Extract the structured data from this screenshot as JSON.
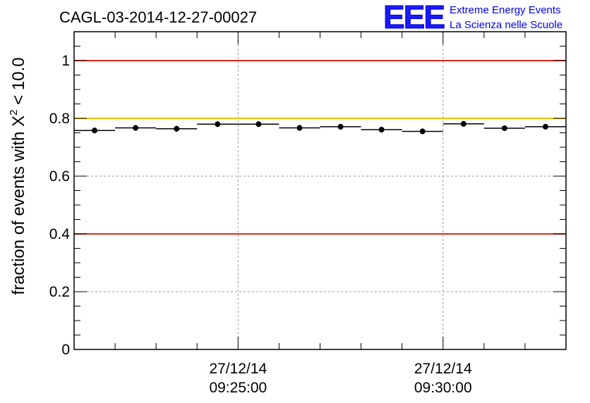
{
  "header": {
    "title": "CAGL-03-2014-12-27-00027",
    "logo": "EEE",
    "brand_line1": "Extreme Energy Events",
    "brand_line2": "La Scienza nelle Scuole"
  },
  "chart_data": {
    "type": "scatter",
    "title": "CAGL-03-2014-12-27-00027",
    "ylabel_parts": {
      "prefix": "fraction of events with ",
      "symbol": "X",
      "superscript": "2",
      "suffix": " < 10.0"
    },
    "ylim": [
      0,
      1.1
    ],
    "yticks": [
      0,
      0.2,
      0.4,
      0.6,
      0.8,
      1
    ],
    "ytick_labels": [
      "0",
      "0.2",
      "0.4",
      "0.6",
      "0.8",
      "1"
    ],
    "x_unit": "minutes since 09:21:00",
    "xlim": [
      0,
      12
    ],
    "x_major_ticks": [
      {
        "x": 4,
        "date": "27/12/14",
        "time": "09:25:00"
      },
      {
        "x": 9,
        "date": "27/12/14",
        "time": "09:30:00"
      }
    ],
    "x_minor_ticks": [
      1,
      2,
      3,
      5,
      6,
      7,
      8,
      10,
      11
    ],
    "grid": true,
    "reference_lines": [
      {
        "y": 1.0,
        "color": "#e8261e"
      },
      {
        "y": 0.8,
        "color": "#f5c000"
      },
      {
        "y": 0.4,
        "color": "#e8261e"
      }
    ],
    "points": [
      {
        "x0": 0,
        "x1": 1,
        "y": 0.758,
        "err": 0.01
      },
      {
        "x0": 1,
        "x1": 2,
        "y": 0.767,
        "err": 0.01
      },
      {
        "x0": 2,
        "x1": 3,
        "y": 0.764,
        "err": 0.01
      },
      {
        "x0": 3,
        "x1": 4,
        "y": 0.78,
        "err": 0.01
      },
      {
        "x0": 4,
        "x1": 5,
        "y": 0.78,
        "err": 0.01
      },
      {
        "x0": 5,
        "x1": 6,
        "y": 0.767,
        "err": 0.01
      },
      {
        "x0": 6,
        "x1": 7,
        "y": 0.771,
        "err": 0.01
      },
      {
        "x0": 7,
        "x1": 8,
        "y": 0.761,
        "err": 0.01
      },
      {
        "x0": 8,
        "x1": 9,
        "y": 0.755,
        "err": 0.01
      },
      {
        "x0": 9,
        "x1": 10,
        "y": 0.781,
        "err": 0.01
      },
      {
        "x0": 10,
        "x1": 11,
        "y": 0.766,
        "err": 0.01
      },
      {
        "x0": 11,
        "x1": 12,
        "y": 0.771,
        "err": 0.01
      }
    ]
  }
}
